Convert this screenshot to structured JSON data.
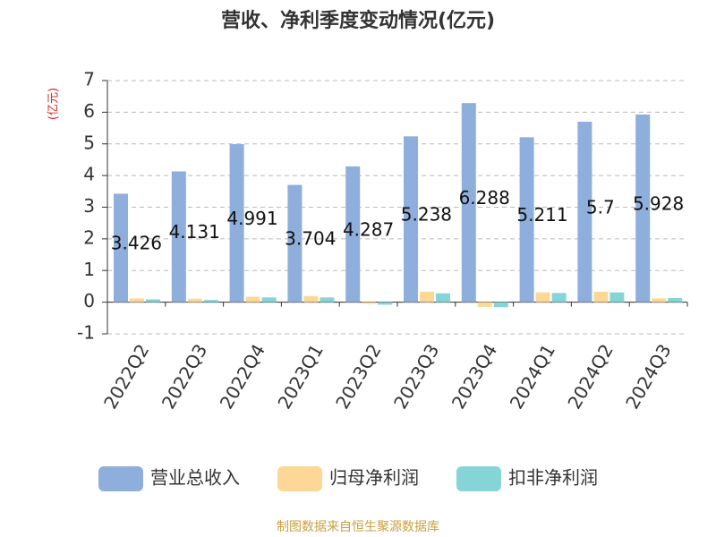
{
  "chart_data": {
    "type": "bar",
    "title": "营收、净利季度变动情况(亿元)",
    "y_label": "(亿元)",
    "source": "制图数据来自恒生聚源数据库",
    "categories": [
      "2022Q2",
      "2022Q3",
      "2022Q4",
      "2023Q1",
      "2023Q2",
      "2023Q3",
      "2023Q4",
      "2024Q1",
      "2024Q2",
      "2024Q3"
    ],
    "series": [
      {
        "name": "营业总收入",
        "color": "#8eaedc",
        "values": [
          3.426,
          4.131,
          4.991,
          3.704,
          4.287,
          5.238,
          6.288,
          5.211,
          5.7,
          5.928
        ],
        "show_labels": true
      },
      {
        "name": "归母净利润",
        "color": "#fdd796",
        "values": [
          0.12,
          0.11,
          0.17,
          0.19,
          -0.05,
          0.33,
          -0.15,
          0.31,
          0.33,
          0.12
        ]
      },
      {
        "name": "扣非净利润",
        "color": "#86d5d6",
        "values": [
          0.09,
          0.07,
          0.15,
          0.15,
          -0.08,
          0.28,
          -0.16,
          0.29,
          0.31,
          0.13
        ]
      }
    ],
    "ylim": [
      -1,
      7
    ],
    "yticks": [
      -1,
      0,
      1,
      2,
      3,
      4,
      5,
      6,
      7
    ],
    "grid": true
  }
}
